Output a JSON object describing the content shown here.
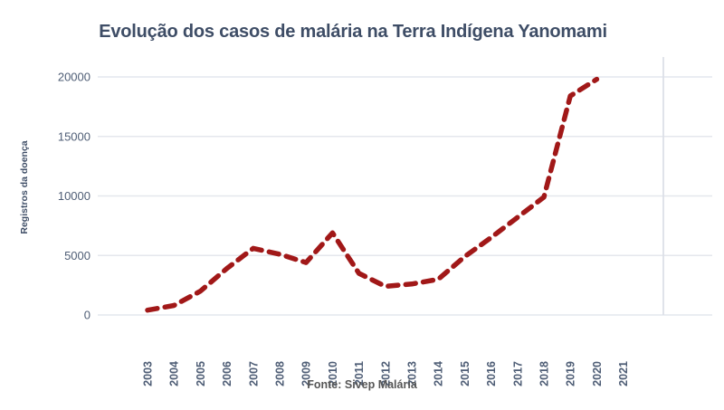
{
  "title": "Evolução dos casos de malária na Terra Indígena  Yanomami",
  "source": "Fonte: Sivep Malária",
  "chart_data": {
    "type": "line",
    "title": "Evolução dos casos de malária na Terra Indígena  Yanomami",
    "xlabel": "",
    "ylabel": "Registros da doença",
    "x": [
      "2003",
      "2004",
      "2005",
      "2006",
      "2007",
      "2008",
      "2009",
      "2010",
      "2011",
      "2012",
      "2013",
      "2014",
      "2015",
      "2016",
      "2017",
      "2018",
      "2019",
      "2020",
      "2021"
    ],
    "series": [
      {
        "name": "Registros da doença",
        "values": [
          400,
          800,
          2000,
          3900,
          5600,
          5100,
          4400,
          6900,
          3500,
          2400,
          2600,
          3000,
          4900,
          6500,
          8200,
          9900,
          18400,
          19800,
          null
        ]
      }
    ],
    "yticks": [
      0,
      5000,
      10000,
      15000,
      20000
    ],
    "ylim": [
      0,
      20000
    ],
    "grid": "horizontal",
    "legend": "none",
    "line_style": "dashed",
    "source_note": "Fonte: Sivep Malária"
  },
  "colors": {
    "line": "#A11818",
    "title_text": "#3E4D66",
    "tick_text": "#4E5D75",
    "gridline": "#E4E7ED",
    "right_border": "#DCE0E8",
    "source_text": "#575757"
  }
}
